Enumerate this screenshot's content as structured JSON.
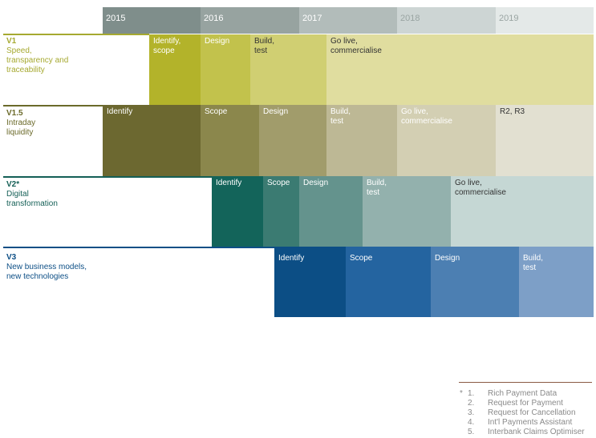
{
  "timeline": {
    "years": [
      {
        "label": "2015",
        "color": "#7f8e8b"
      },
      {
        "label": "2016",
        "color": "#97a3a0"
      },
      {
        "label": "2017",
        "color": "#b2bcba"
      },
      {
        "label": "2018",
        "color": "#cdd5d4"
      },
      {
        "label": "2019",
        "color": "#e4e9e8"
      }
    ]
  },
  "rows": [
    {
      "code": "V1",
      "description": "Speed,\ntransparency and\ntraceability",
      "color": "#a6a930",
      "phases": [
        {
          "label": "Identify,\nscope",
          "color": "#b3b32a"
        },
        {
          "label": "Design",
          "color": "#c2c24c"
        },
        {
          "label": "Build,\ntest",
          "color": "#d0cf72"
        },
        {
          "label": "Go live,\ncommercialise",
          "color": "#e0dd9f"
        }
      ]
    },
    {
      "code": "V1.5",
      "description": "Intraday\nliquidity",
      "color": "#6b6a2a",
      "phases": [
        {
          "label": "Identify",
          "color": "#6c6830"
        },
        {
          "label": "Scope",
          "color": "#8b874c"
        },
        {
          "label": "Design",
          "color": "#a19c6b"
        },
        {
          "label": "Build,\ntest",
          "color": "#bdb895"
        },
        {
          "label": "Go live,\ncommercialise",
          "color": "#d3cfb3"
        },
        {
          "label": "R2, R3",
          "color": "#e2e0d1"
        }
      ]
    },
    {
      "code": "V2*",
      "description": "Digital\ntransformation",
      "color": "#145f56",
      "phases": [
        {
          "label": "Identify",
          "color": "#13645a"
        },
        {
          "label": "Scope",
          "color": "#3b7b72"
        },
        {
          "label": "Design",
          "color": "#64938d"
        },
        {
          "label": "Build,\ntest",
          "color": "#93b1ad"
        },
        {
          "label": "Go live,\ncommercialise",
          "color": "#c5d7d4"
        }
      ]
    },
    {
      "code": "V3",
      "description": "New business models,\nnew technologies",
      "color": "#0d4f86",
      "phases": [
        {
          "label": "Identify",
          "color": "#0c4e85"
        },
        {
          "label": "Scope",
          "color": "#2464a0"
        },
        {
          "label": "Design",
          "color": "#4c7fb2"
        },
        {
          "label": "Build,\ntest",
          "color": "#7d9fc7"
        }
      ]
    }
  ],
  "footnote": {
    "marker": "*",
    "items": [
      {
        "num": "1.",
        "text": "Rich Payment Data"
      },
      {
        "num": "2.",
        "text": "Request for Payment"
      },
      {
        "num": "3.",
        "text": "Request for Cancellation"
      },
      {
        "num": "4.",
        "text": "Int'l Payments Assistant"
      },
      {
        "num": "5.",
        "text": "Interbank Claims Optimiser"
      }
    ]
  }
}
